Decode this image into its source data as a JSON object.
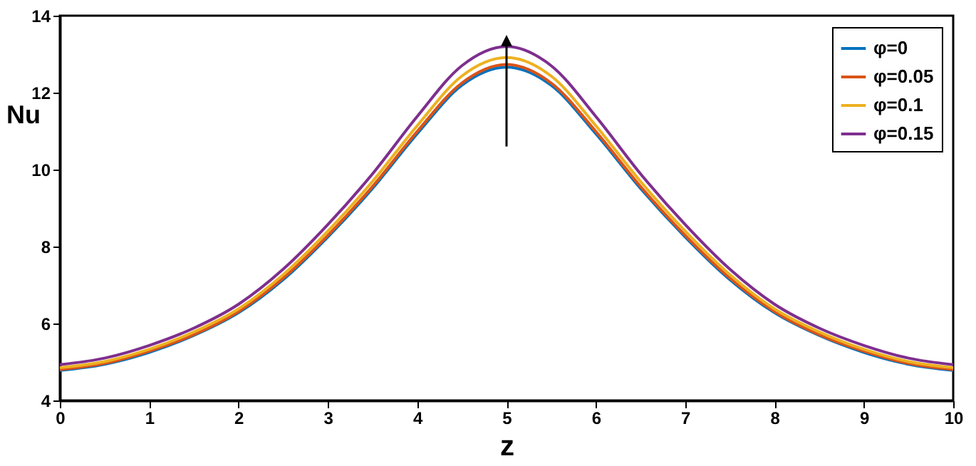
{
  "chart_data": {
    "type": "line",
    "xlabel": "z",
    "ylabel": "Nu",
    "x": [
      0,
      0.5,
      1,
      1.5,
      2,
      2.5,
      3,
      3.5,
      4,
      4.5,
      5,
      5.5,
      6,
      6.5,
      7,
      7.5,
      8,
      8.5,
      9,
      9.5,
      10
    ],
    "series": [
      {
        "name": "φ=0",
        "color": "#0072bd",
        "values": [
          4.78,
          4.94,
          5.25,
          5.69,
          6.28,
          7.14,
          8.25,
          9.51,
          10.93,
          12.19,
          12.66,
          12.19,
          10.93,
          9.51,
          8.25,
          7.14,
          6.28,
          5.69,
          5.25,
          4.94,
          4.78
        ]
      },
      {
        "name": "φ=0.05",
        "color": "#d95319",
        "values": [
          4.8,
          4.96,
          5.28,
          5.71,
          6.31,
          7.18,
          8.29,
          9.56,
          10.99,
          12.25,
          12.73,
          12.25,
          10.99,
          9.56,
          8.29,
          7.18,
          6.31,
          5.71,
          5.28,
          4.96,
          4.8
        ]
      },
      {
        "name": "φ=0.1",
        "color": "#edb120",
        "values": [
          4.85,
          5.01,
          5.33,
          5.78,
          6.38,
          7.27,
          8.4,
          9.69,
          11.14,
          12.43,
          12.91,
          12.43,
          11.14,
          9.69,
          8.4,
          7.27,
          6.38,
          5.78,
          5.33,
          5.01,
          4.85
        ]
      },
      {
        "name": "φ=0.15",
        "color": "#7e2f8e",
        "values": [
          4.93,
          5.1,
          5.43,
          5.88,
          6.5,
          7.41,
          8.57,
          9.89,
          11.38,
          12.7,
          13.2,
          12.7,
          11.38,
          9.89,
          8.57,
          7.41,
          6.5,
          5.88,
          5.43,
          5.1,
          4.93
        ]
      }
    ],
    "xlim": [
      0,
      10
    ],
    "xticks": [
      0,
      1,
      2,
      3,
      4,
      5,
      6,
      7,
      8,
      9,
      10
    ],
    "ylim": [
      4,
      14
    ],
    "yticks": [
      4,
      6,
      8,
      10,
      12,
      14
    ],
    "grid": false,
    "legend": "top right",
    "line_style": "solid",
    "marker": "none"
  }
}
